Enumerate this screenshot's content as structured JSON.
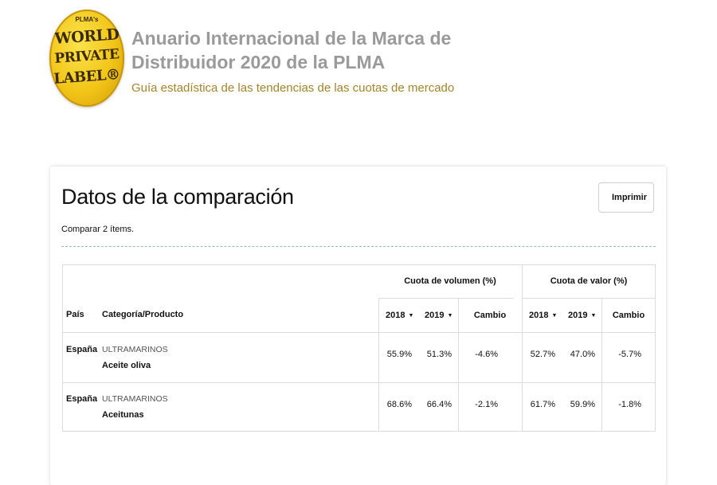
{
  "header": {
    "logo_text": [
      "PLMA's",
      "WORLD",
      "PRIVATE",
      "LABEL®"
    ],
    "title_line1": "Anuario Internacional de la Marca de",
    "title_line2": "Distribuidor 2020 de la PLMA",
    "subtitle": "Guía estadística de las tendencias de las cuotas de mercado"
  },
  "card": {
    "title": "Datos de la comparación",
    "print_label": "Imprimir",
    "compare_count": "Comparar 2 ítems."
  },
  "table": {
    "group_headers": {
      "volume": "Cuota de volumen (%)",
      "value": "Cuota de valor (%)"
    },
    "columns": {
      "country": "País",
      "category": "Categoría/Producto",
      "vol_2018": "2018",
      "vol_2019": "2019",
      "vol_change": "Cambio",
      "val_2018": "2018",
      "val_2019": "2019",
      "val_change": "Cambio"
    },
    "rows": [
      {
        "country": "España",
        "category": "ULTRAMARINOS",
        "product": "Aceite oliva",
        "vol_2018": "55.9%",
        "vol_2019": "51.3%",
        "vol_change": "-4.6%",
        "val_2018": "52.7%",
        "val_2019": "47.0%",
        "val_change": "-5.7%"
      },
      {
        "country": "España",
        "category": "ULTRAMARINOS",
        "product": "Aceitunas",
        "vol_2018": "68.6%",
        "vol_2019": "66.4%",
        "vol_change": "-2.1%",
        "val_2018": "61.7%",
        "val_2019": "59.9%",
        "val_change": "-1.8%"
      }
    ]
  },
  "icons": {
    "sort": "sort-desc-icon"
  },
  "colors": {
    "title_gray": "#9a9a9a",
    "subtitle_gold": "#a4852a",
    "logo_gold": "#f2c418",
    "separator_blue": "#9db8cc"
  }
}
